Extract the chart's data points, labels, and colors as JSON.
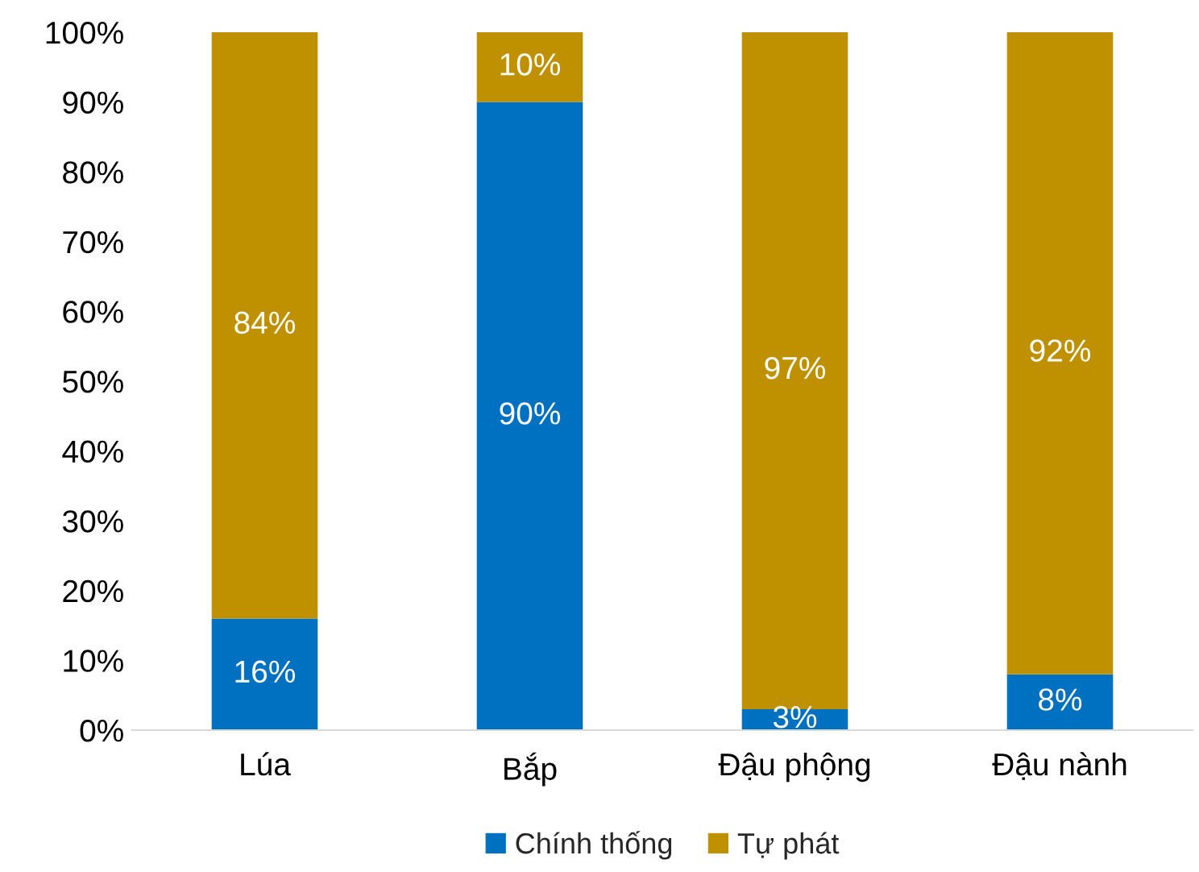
{
  "chart_data": {
    "type": "bar",
    "stacked": true,
    "categories": [
      "Lúa",
      "Bắp",
      "Đậu phộng",
      "Đậu nành"
    ],
    "series": [
      {
        "name": "Chính thống",
        "color": "#0070c0",
        "values": [
          16,
          90,
          3,
          8
        ],
        "value_labels": [
          "16%",
          "90%",
          "3%",
          "8%"
        ]
      },
      {
        "name": "Tự phát",
        "color": "#bf9000",
        "values": [
          84,
          10,
          97,
          92
        ],
        "value_labels": [
          "84%",
          "10%",
          "97%",
          "92%"
        ]
      }
    ],
    "ylim": [
      0,
      100
    ],
    "yticks": [
      {
        "value": 0,
        "label": "0%"
      },
      {
        "value": 10,
        "label": "10%"
      },
      {
        "value": 20,
        "label": "20%"
      },
      {
        "value": 30,
        "label": "30%"
      },
      {
        "value": 40,
        "label": "40%"
      },
      {
        "value": 50,
        "label": "50%"
      },
      {
        "value": 60,
        "label": "60%"
      },
      {
        "value": 70,
        "label": "70%"
      },
      {
        "value": 80,
        "label": "80%"
      },
      {
        "value": 90,
        "label": "90%"
      },
      {
        "value": 100,
        "label": "100%"
      }
    ],
    "grid": false,
    "legend": "bottom"
  }
}
